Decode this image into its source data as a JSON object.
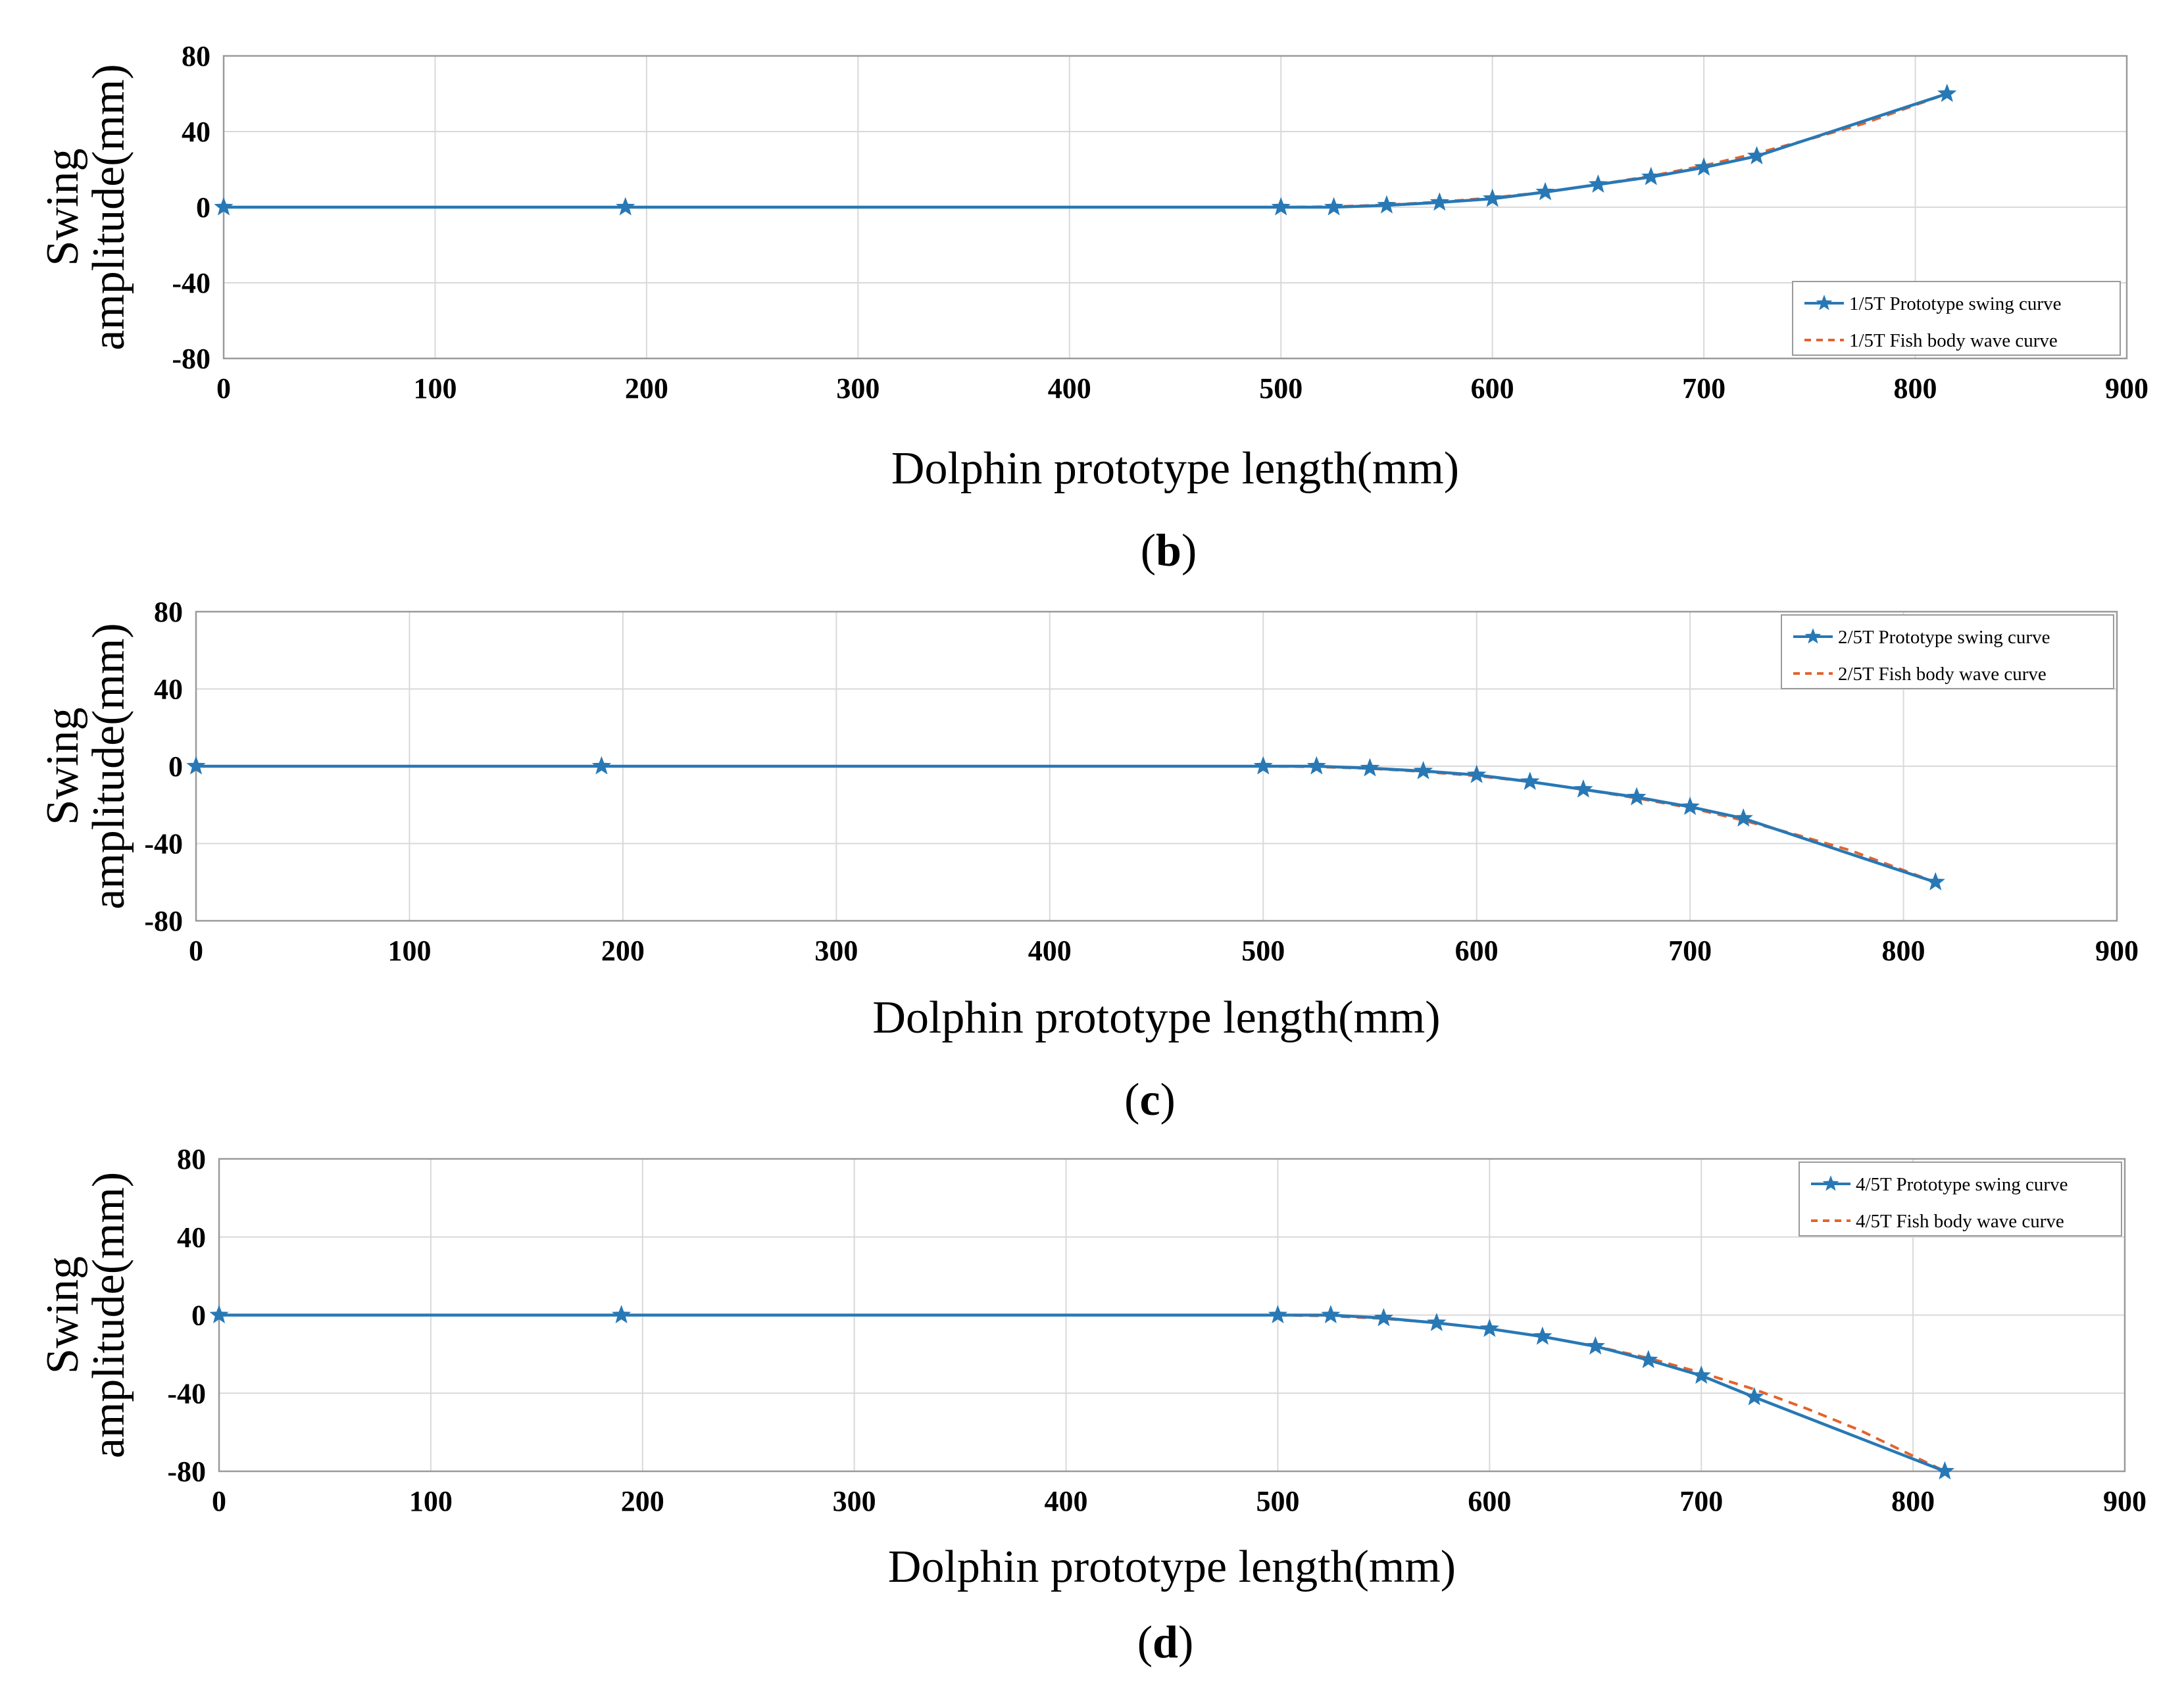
{
  "chart_data": [
    {
      "type": "line",
      "panel": "b",
      "caption_open": "(",
      "caption_letter": "b",
      "caption_close": ")",
      "xlabel": "Dolphin prototype length(mm)",
      "ylabel_line1": "Swing",
      "ylabel_line2": "amplitude(mm)",
      "xlim": [
        0,
        900
      ],
      "ylim": [
        -80,
        80
      ],
      "xticks": [
        "0",
        "100",
        "200",
        "300",
        "400",
        "500",
        "600",
        "700",
        "800",
        "900"
      ],
      "yticks": [
        "80",
        "40",
        "0",
        "-40",
        "-80"
      ],
      "grid": true,
      "legend_position": "bottom-right",
      "series": [
        {
          "name": "1/5T Prototype swing curve",
          "color": "#2878b5",
          "style": "solid-star",
          "x": [
            0,
            190,
            500,
            525,
            550,
            575,
            600,
            625,
            650,
            675,
            700,
            725,
            815
          ],
          "y": [
            0,
            0,
            0,
            0,
            1,
            2.5,
            4.5,
            8,
            12,
            16,
            21,
            27,
            60
          ]
        },
        {
          "name": "1/5T Fish body wave curve",
          "color": "#e3632d",
          "style": "dashed",
          "x": [
            500,
            525,
            550,
            575,
            600,
            625,
            650,
            675,
            700,
            725,
            750,
            775,
            815
          ],
          "y": [
            0,
            0.3,
            1.2,
            2.8,
            5,
            8,
            12,
            16.5,
            22,
            28.5,
            36,
            44,
            60
          ]
        }
      ]
    },
    {
      "type": "line",
      "panel": "c",
      "caption_open": "(",
      "caption_letter": "c",
      "caption_close": ")",
      "xlabel": "Dolphin prototype length(mm)",
      "ylabel_line1": "Swing",
      "ylabel_line2": "amplitude(mm)",
      "xlim": [
        0,
        900
      ],
      "ylim": [
        -80,
        80
      ],
      "xticks": [
        "0",
        "100",
        "200",
        "300",
        "400",
        "500",
        "600",
        "700",
        "800",
        "900"
      ],
      "yticks": [
        "80",
        "40",
        "0",
        "-40",
        "-80"
      ],
      "grid": true,
      "legend_position": "top-right",
      "series": [
        {
          "name": "2/5T Prototype swing curve",
          "color": "#2878b5",
          "style": "solid-star",
          "x": [
            0,
            190,
            500,
            525,
            550,
            575,
            600,
            625,
            650,
            675,
            700,
            725,
            815
          ],
          "y": [
            0,
            0,
            0,
            0,
            -1,
            -2.5,
            -4.5,
            -8,
            -12,
            -16,
            -21,
            -27,
            -60
          ]
        },
        {
          "name": "2/5T Fish body wave curve",
          "color": "#e3632d",
          "style": "dashed",
          "x": [
            500,
            525,
            550,
            575,
            600,
            625,
            650,
            675,
            700,
            725,
            750,
            775,
            815
          ],
          "y": [
            0,
            -0.3,
            -1.2,
            -2.8,
            -5,
            -8,
            -12,
            -16.5,
            -21.5,
            -28,
            -35.5,
            -43.5,
            -60
          ]
        }
      ]
    },
    {
      "type": "line",
      "panel": "d",
      "caption_open": "(",
      "caption_letter": "d",
      "caption_close": ")",
      "xlabel": "Dolphin prototype length(mm)",
      "ylabel_line1": "Swing",
      "ylabel_line2": "amplitude(mm)",
      "xlim": [
        0,
        900
      ],
      "ylim": [
        -80,
        80
      ],
      "xticks": [
        "0",
        "100",
        "200",
        "300",
        "400",
        "500",
        "600",
        "700",
        "800",
        "900"
      ],
      "yticks": [
        "80",
        "40",
        "0",
        "-40",
        "-80"
      ],
      "grid": true,
      "legend_position": "top-right",
      "series": [
        {
          "name": "4/5T Prototype swing curve",
          "color": "#2878b5",
          "style": "solid-star",
          "x": [
            0,
            190,
            500,
            525,
            550,
            575,
            600,
            625,
            650,
            675,
            700,
            725,
            815
          ],
          "y": [
            0,
            0,
            0,
            0,
            -1.5,
            -4,
            -7,
            -11,
            -16,
            -23,
            -31,
            -42,
            -80
          ]
        },
        {
          "name": "4/5T Fish body wave curve",
          "color": "#e3632d",
          "style": "dashed",
          "x": [
            500,
            525,
            550,
            575,
            600,
            625,
            650,
            675,
            700,
            725,
            750,
            775,
            815
          ],
          "y": [
            0,
            -0.5,
            -1.8,
            -4,
            -7,
            -11,
            -16,
            -22,
            -29.5,
            -38,
            -48,
            -59,
            -80
          ]
        }
      ]
    }
  ]
}
